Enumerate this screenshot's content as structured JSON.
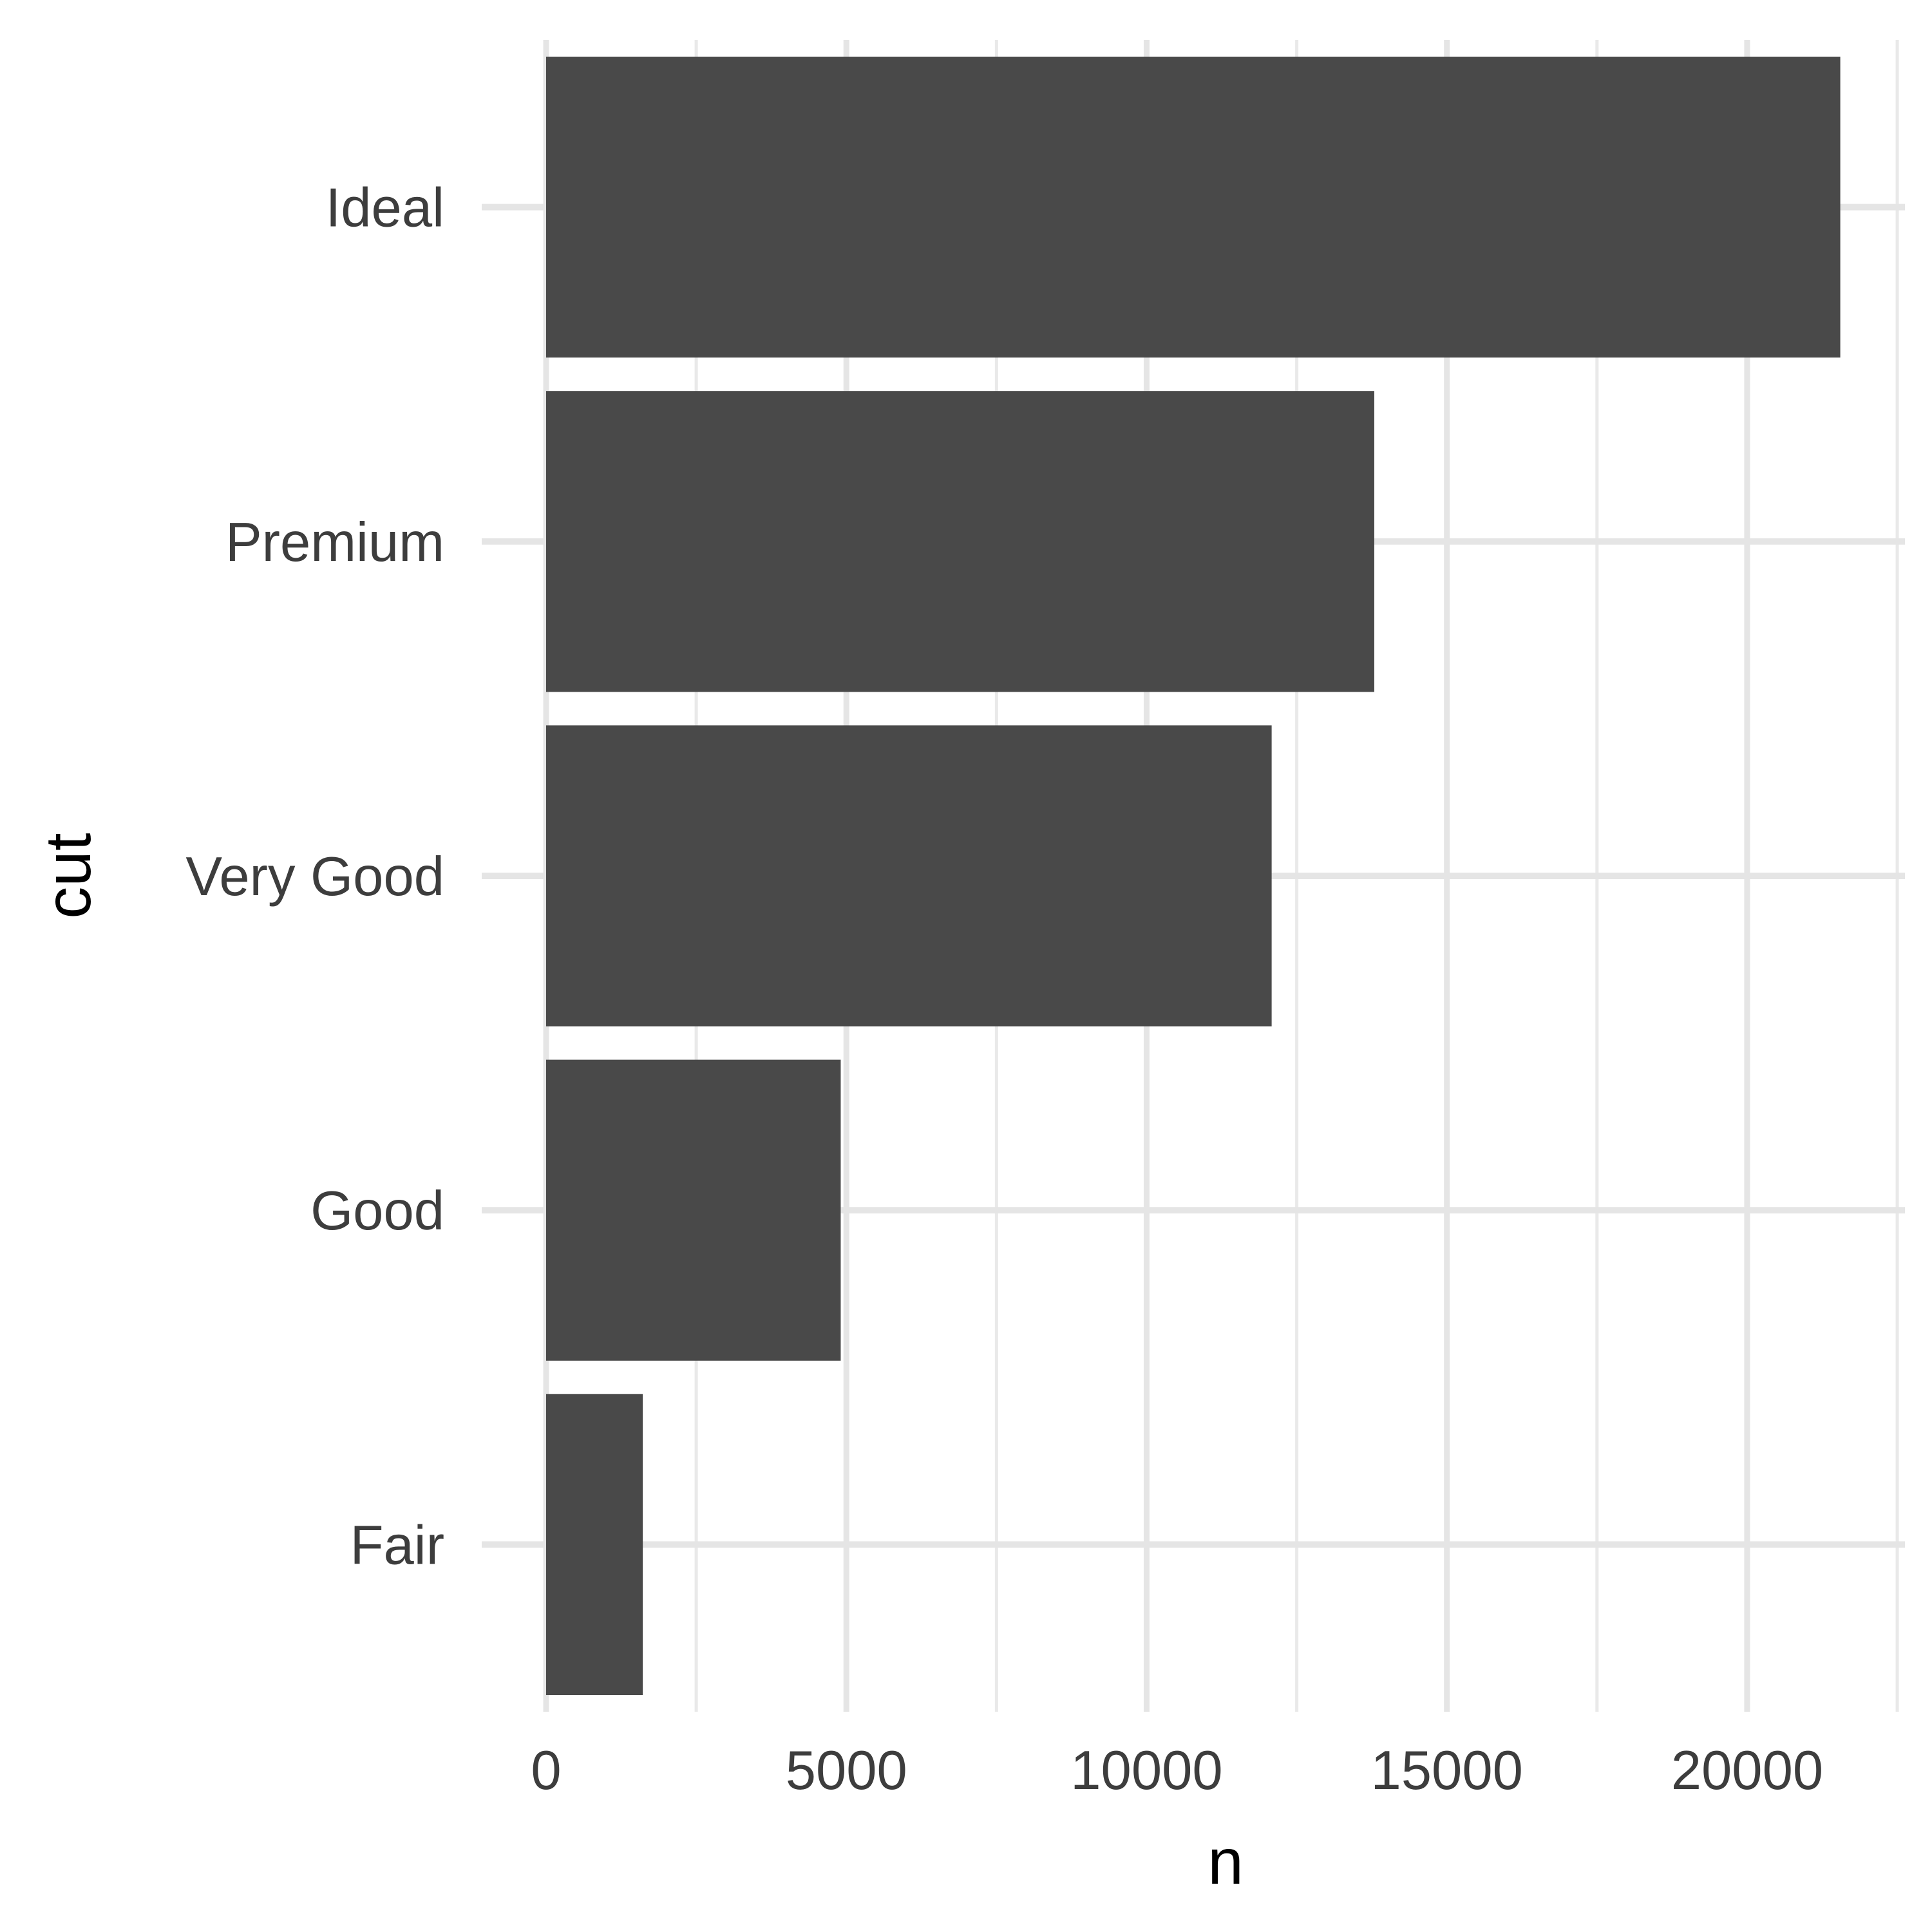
{
  "colors": {
    "background": "#ffffff",
    "grid_major": "#e5e5e5",
    "grid_minor": "#e9e9e9",
    "bar_fill": "#494949",
    "tick_text": "#3d3d3d",
    "axis_title_text": "#000000"
  },
  "chart_data": {
    "type": "bar",
    "orientation": "horizontal",
    "categories": [
      "Ideal",
      "Premium",
      "Very Good",
      "Good",
      "Fair"
    ],
    "values": [
      21551,
      13791,
      12082,
      4906,
      1610
    ],
    "xlabel": "n",
    "ylabel": "cut",
    "xlim": [
      0,
      22628
    ],
    "x_ticks": [
      0,
      5000,
      10000,
      15000,
      20000
    ],
    "x_tick_labels": [
      "0",
      "5000",
      "10000",
      "15000",
      "20000"
    ],
    "grid": true,
    "legend": "none"
  }
}
